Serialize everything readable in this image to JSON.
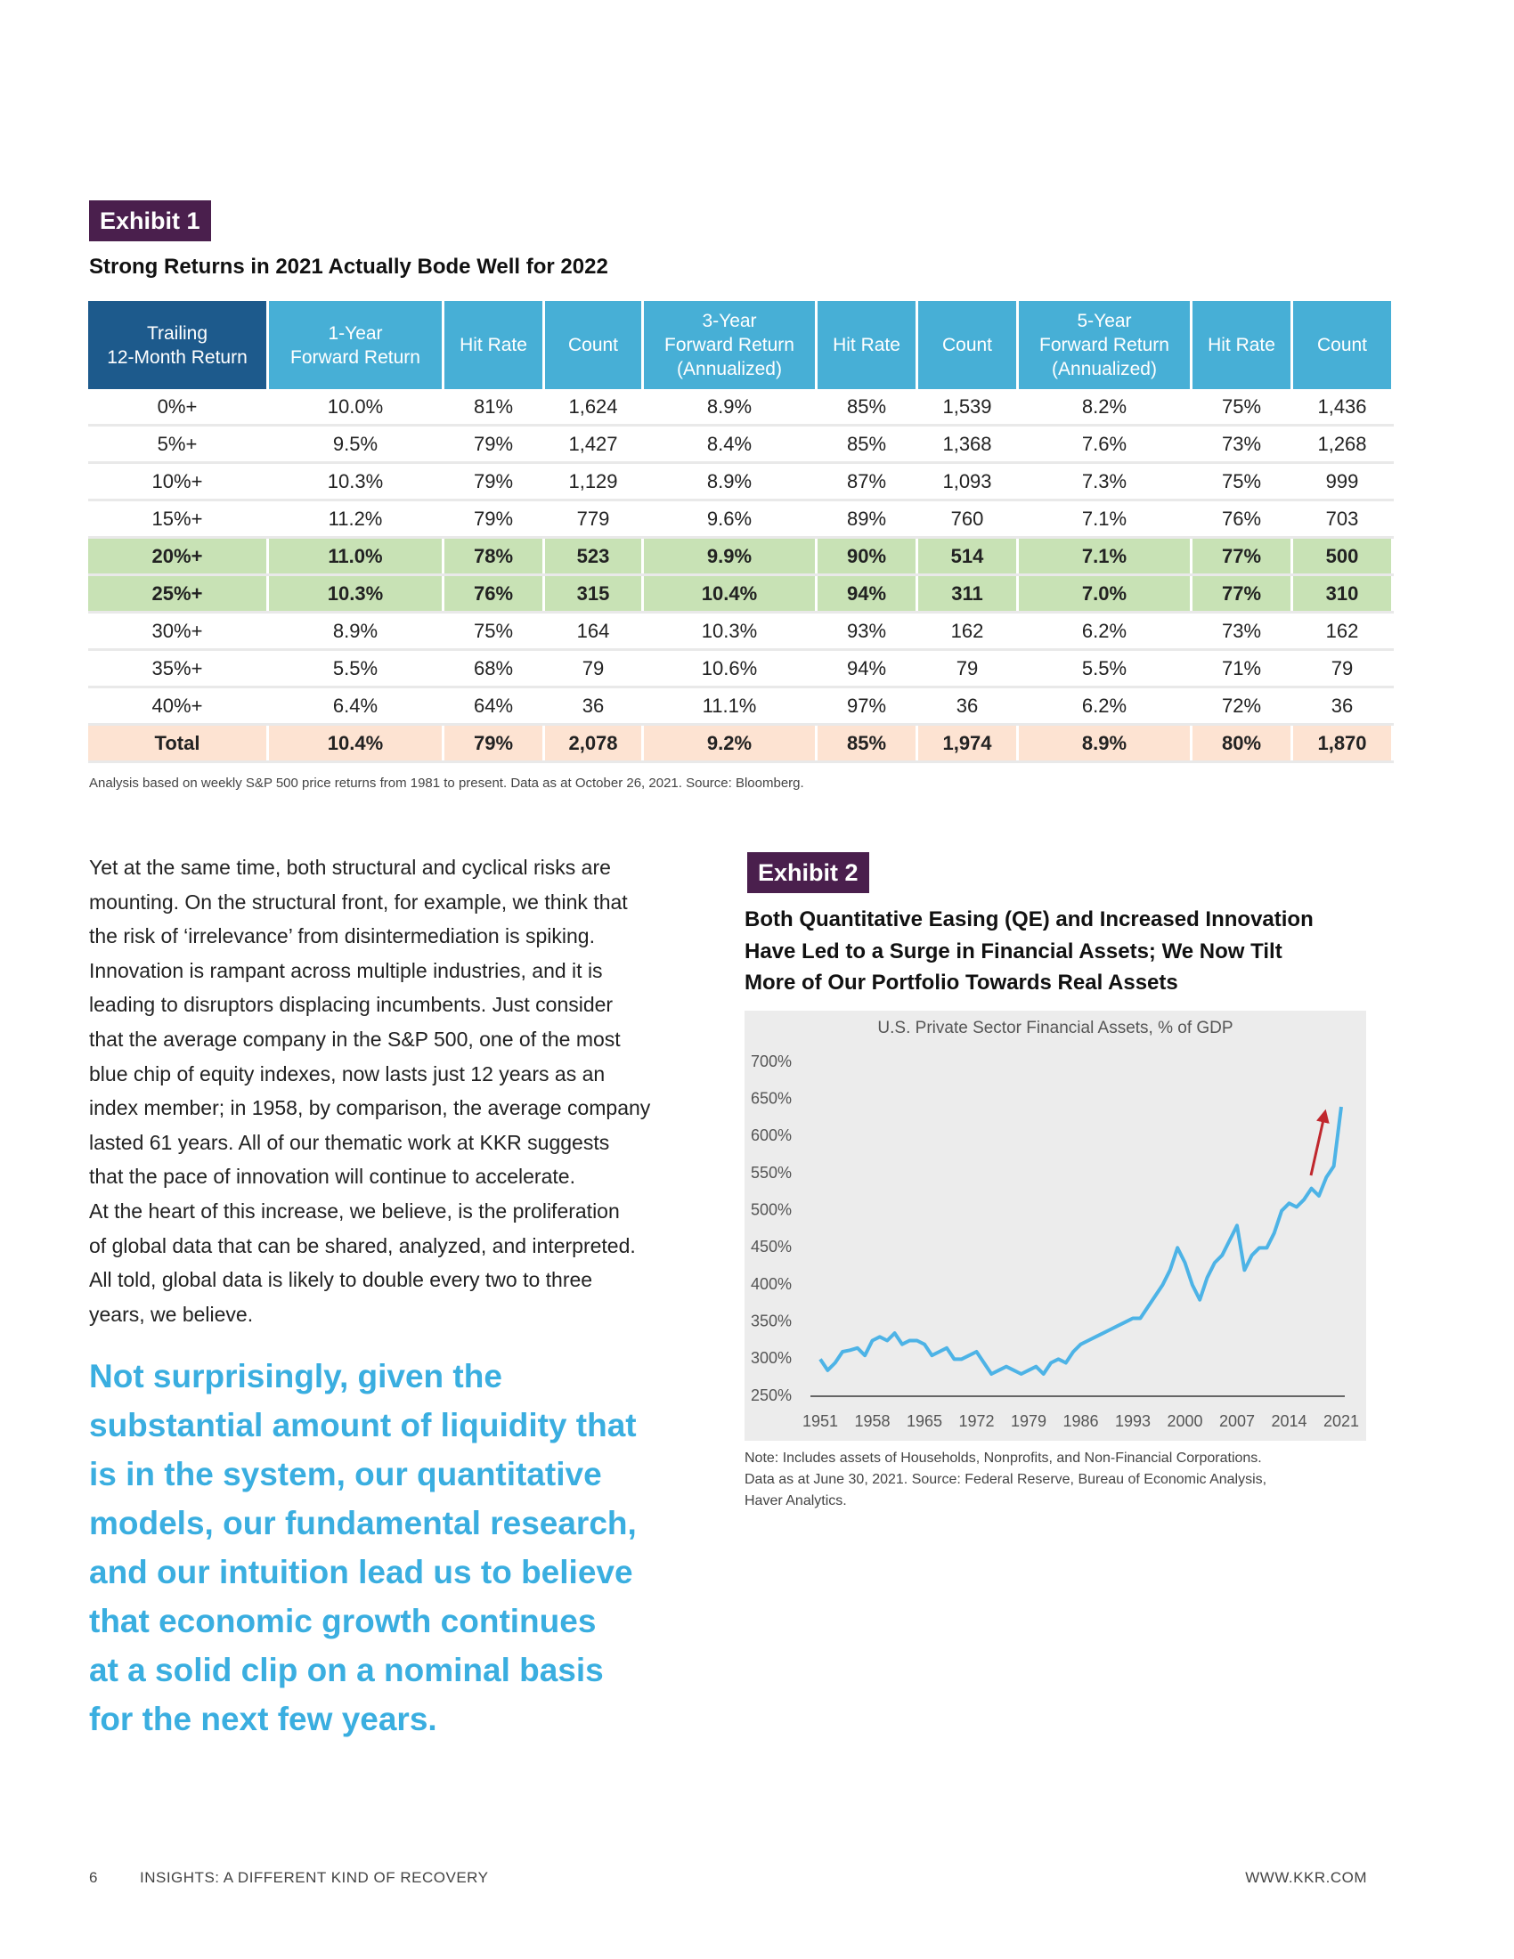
{
  "exhibit1": {
    "label": "Exhibit 1",
    "title": "Strong Returns in 2021 Actually Bode Well for 2022",
    "table": {
      "header": [
        [
          "Trailing",
          "12-Month Return"
        ],
        [
          "1-Year",
          "Forward Return"
        ],
        [
          "Hit Rate"
        ],
        [
          "Count"
        ],
        [
          "3-Year",
          "Forward Return",
          "(Annualized)"
        ],
        [
          "Hit Rate"
        ],
        [
          "Count"
        ],
        [
          "5-Year",
          "Forward Return",
          "(Annualized)"
        ],
        [
          "Hit Rate"
        ],
        [
          "Count"
        ]
      ],
      "rows": [
        [
          "0%+",
          "10.0%",
          "81%",
          "1,624",
          "8.9%",
          "85%",
          "1,539",
          "8.2%",
          "75%",
          "1,436"
        ],
        [
          "5%+",
          "9.5%",
          "79%",
          "1,427",
          "8.4%",
          "85%",
          "1,368",
          "7.6%",
          "73%",
          "1,268"
        ],
        [
          "10%+",
          "10.3%",
          "79%",
          "1,129",
          "8.9%",
          "87%",
          "1,093",
          "7.3%",
          "75%",
          "999"
        ],
        [
          "15%+",
          "11.2%",
          "79%",
          "779",
          "9.6%",
          "89%",
          "760",
          "7.1%",
          "76%",
          "703"
        ],
        [
          "20%+",
          "11.0%",
          "78%",
          "523",
          "9.9%",
          "90%",
          "514",
          "7.1%",
          "77%",
          "500"
        ],
        [
          "25%+",
          "10.3%",
          "76%",
          "315",
          "10.4%",
          "94%",
          "311",
          "7.0%",
          "77%",
          "310"
        ],
        [
          "30%+",
          "8.9%",
          "75%",
          "164",
          "10.3%",
          "93%",
          "162",
          "6.2%",
          "73%",
          "162"
        ],
        [
          "35%+",
          "5.5%",
          "68%",
          "79",
          "10.6%",
          "94%",
          "79",
          "5.5%",
          "71%",
          "79"
        ],
        [
          "40%+",
          "6.4%",
          "64%",
          "36",
          "11.1%",
          "97%",
          "36",
          "6.2%",
          "72%",
          "36"
        ],
        [
          "Total",
          "10.4%",
          "79%",
          "2,078",
          "9.2%",
          "85%",
          "1,974",
          "8.9%",
          "80%",
          "1,870"
        ]
      ]
    },
    "note": "Analysis based on weekly S&P 500 price returns from 1981 to present. Data as at October 26, 2021. Source: Bloomberg."
  },
  "body": {
    "lines": [
      "Yet at the same time, both structural and cyclical risks are",
      "mounting. On the structural front, for example, we think that",
      "the risk of ‘irrelevance’ from disintermediation is spiking.",
      "Innovation is rampant across multiple industries, and it is",
      "leading to disruptors displacing incumbents. Just consider",
      "that the average company in the S&P 500, one of the most",
      "blue chip of equity indexes, now lasts just 12 years as an",
      "index member; in 1958, by comparison, the average company",
      "lasted 61 years. All of our thematic work at KKR suggests",
      "that the pace of innovation will continue to accelerate.",
      "At the heart of this increase, we believe, is the proliferation",
      "of global data that can be shared, analyzed, and interpreted.",
      "All told, global data is likely to double every two to three",
      "years, we believe."
    ],
    "pullquote": [
      "Not surprisingly, given the",
      "substantial amount of liquidity that",
      "is in the system, our quantitative",
      "models, our fundamental research,",
      "and our intuition lead us to believe",
      "that economic growth continues",
      "at a solid clip on a nominal basis",
      "for the next few years."
    ]
  },
  "exhibit2": {
    "label": "Exhibit 2",
    "title": [
      "Both Quantitative Easing (QE) and Increased Innovation",
      "Have Led to a Surge in Financial Assets; We Now Tilt",
      "More of Our Portfolio Towards Real Assets"
    ],
    "note": [
      "Note: Includes assets of Households, Nonprofits, and Non-Financial Corporations.",
      "Data as at June 30, 2021. Source: Federal Reserve, Bureau of Economic Analysis,",
      "Haver Analytics."
    ]
  },
  "chart_data": {
    "type": "line",
    "title": "U.S. Private Sector Financial Assets, % of GDP",
    "x": [
      1951,
      1952,
      1953,
      1954,
      1955,
      1956,
      1957,
      1958,
      1959,
      1960,
      1961,
      1962,
      1963,
      1964,
      1965,
      1966,
      1967,
      1968,
      1969,
      1970,
      1971,
      1972,
      1973,
      1974,
      1975,
      1976,
      1977,
      1978,
      1979,
      1980,
      1981,
      1982,
      1983,
      1984,
      1985,
      1986,
      1987,
      1988,
      1989,
      1990,
      1991,
      1992,
      1993,
      1994,
      1995,
      1996,
      1997,
      1998,
      1999,
      2000,
      2001,
      2002,
      2003,
      2004,
      2005,
      2006,
      2007,
      2008,
      2009,
      2010,
      2011,
      2012,
      2013,
      2014,
      2015,
      2016,
      2017,
      2018,
      2019,
      2020,
      2021
    ],
    "series": [
      {
        "color": "#4db3e6",
        "values": [
          300,
          285,
          295,
          310,
          312,
          315,
          305,
          325,
          330,
          325,
          335,
          320,
          325,
          325,
          320,
          305,
          310,
          315,
          300,
          300,
          305,
          310,
          295,
          280,
          285,
          290,
          285,
          280,
          285,
          290,
          280,
          295,
          300,
          295,
          310,
          320,
          325,
          330,
          335,
          340,
          345,
          350,
          355,
          355,
          370,
          385,
          400,
          420,
          450,
          430,
          400,
          380,
          410,
          430,
          440,
          460,
          480,
          420,
          440,
          450,
          450,
          470,
          500,
          510,
          505,
          515,
          530,
          520,
          545,
          560,
          640
        ]
      }
    ],
    "xlim": [
      1951,
      2021
    ],
    "xticks": [
      1951,
      1958,
      1965,
      1972,
      1979,
      1986,
      1993,
      2000,
      2007,
      2014,
      2021
    ],
    "ylim": [
      250,
      700
    ],
    "yticks": [
      {
        "value": 700,
        "label": "700%"
      },
      {
        "value": 650,
        "label": "650%"
      },
      {
        "value": 600,
        "label": "600%"
      },
      {
        "value": 550,
        "label": "550%"
      },
      {
        "value": 500,
        "label": "500%"
      },
      {
        "value": 450,
        "label": "450%"
      },
      {
        "value": 400,
        "label": "400%"
      },
      {
        "value": 350,
        "label": "350%"
      },
      {
        "value": 300,
        "label": "300%"
      },
      {
        "value": 250,
        "label": "250%"
      }
    ]
  },
  "footer": {
    "page": "6",
    "title": "INSIGHTS: A DIFFERENT KIND OF RECOVERY",
    "url": "WWW.KKR.COM"
  }
}
